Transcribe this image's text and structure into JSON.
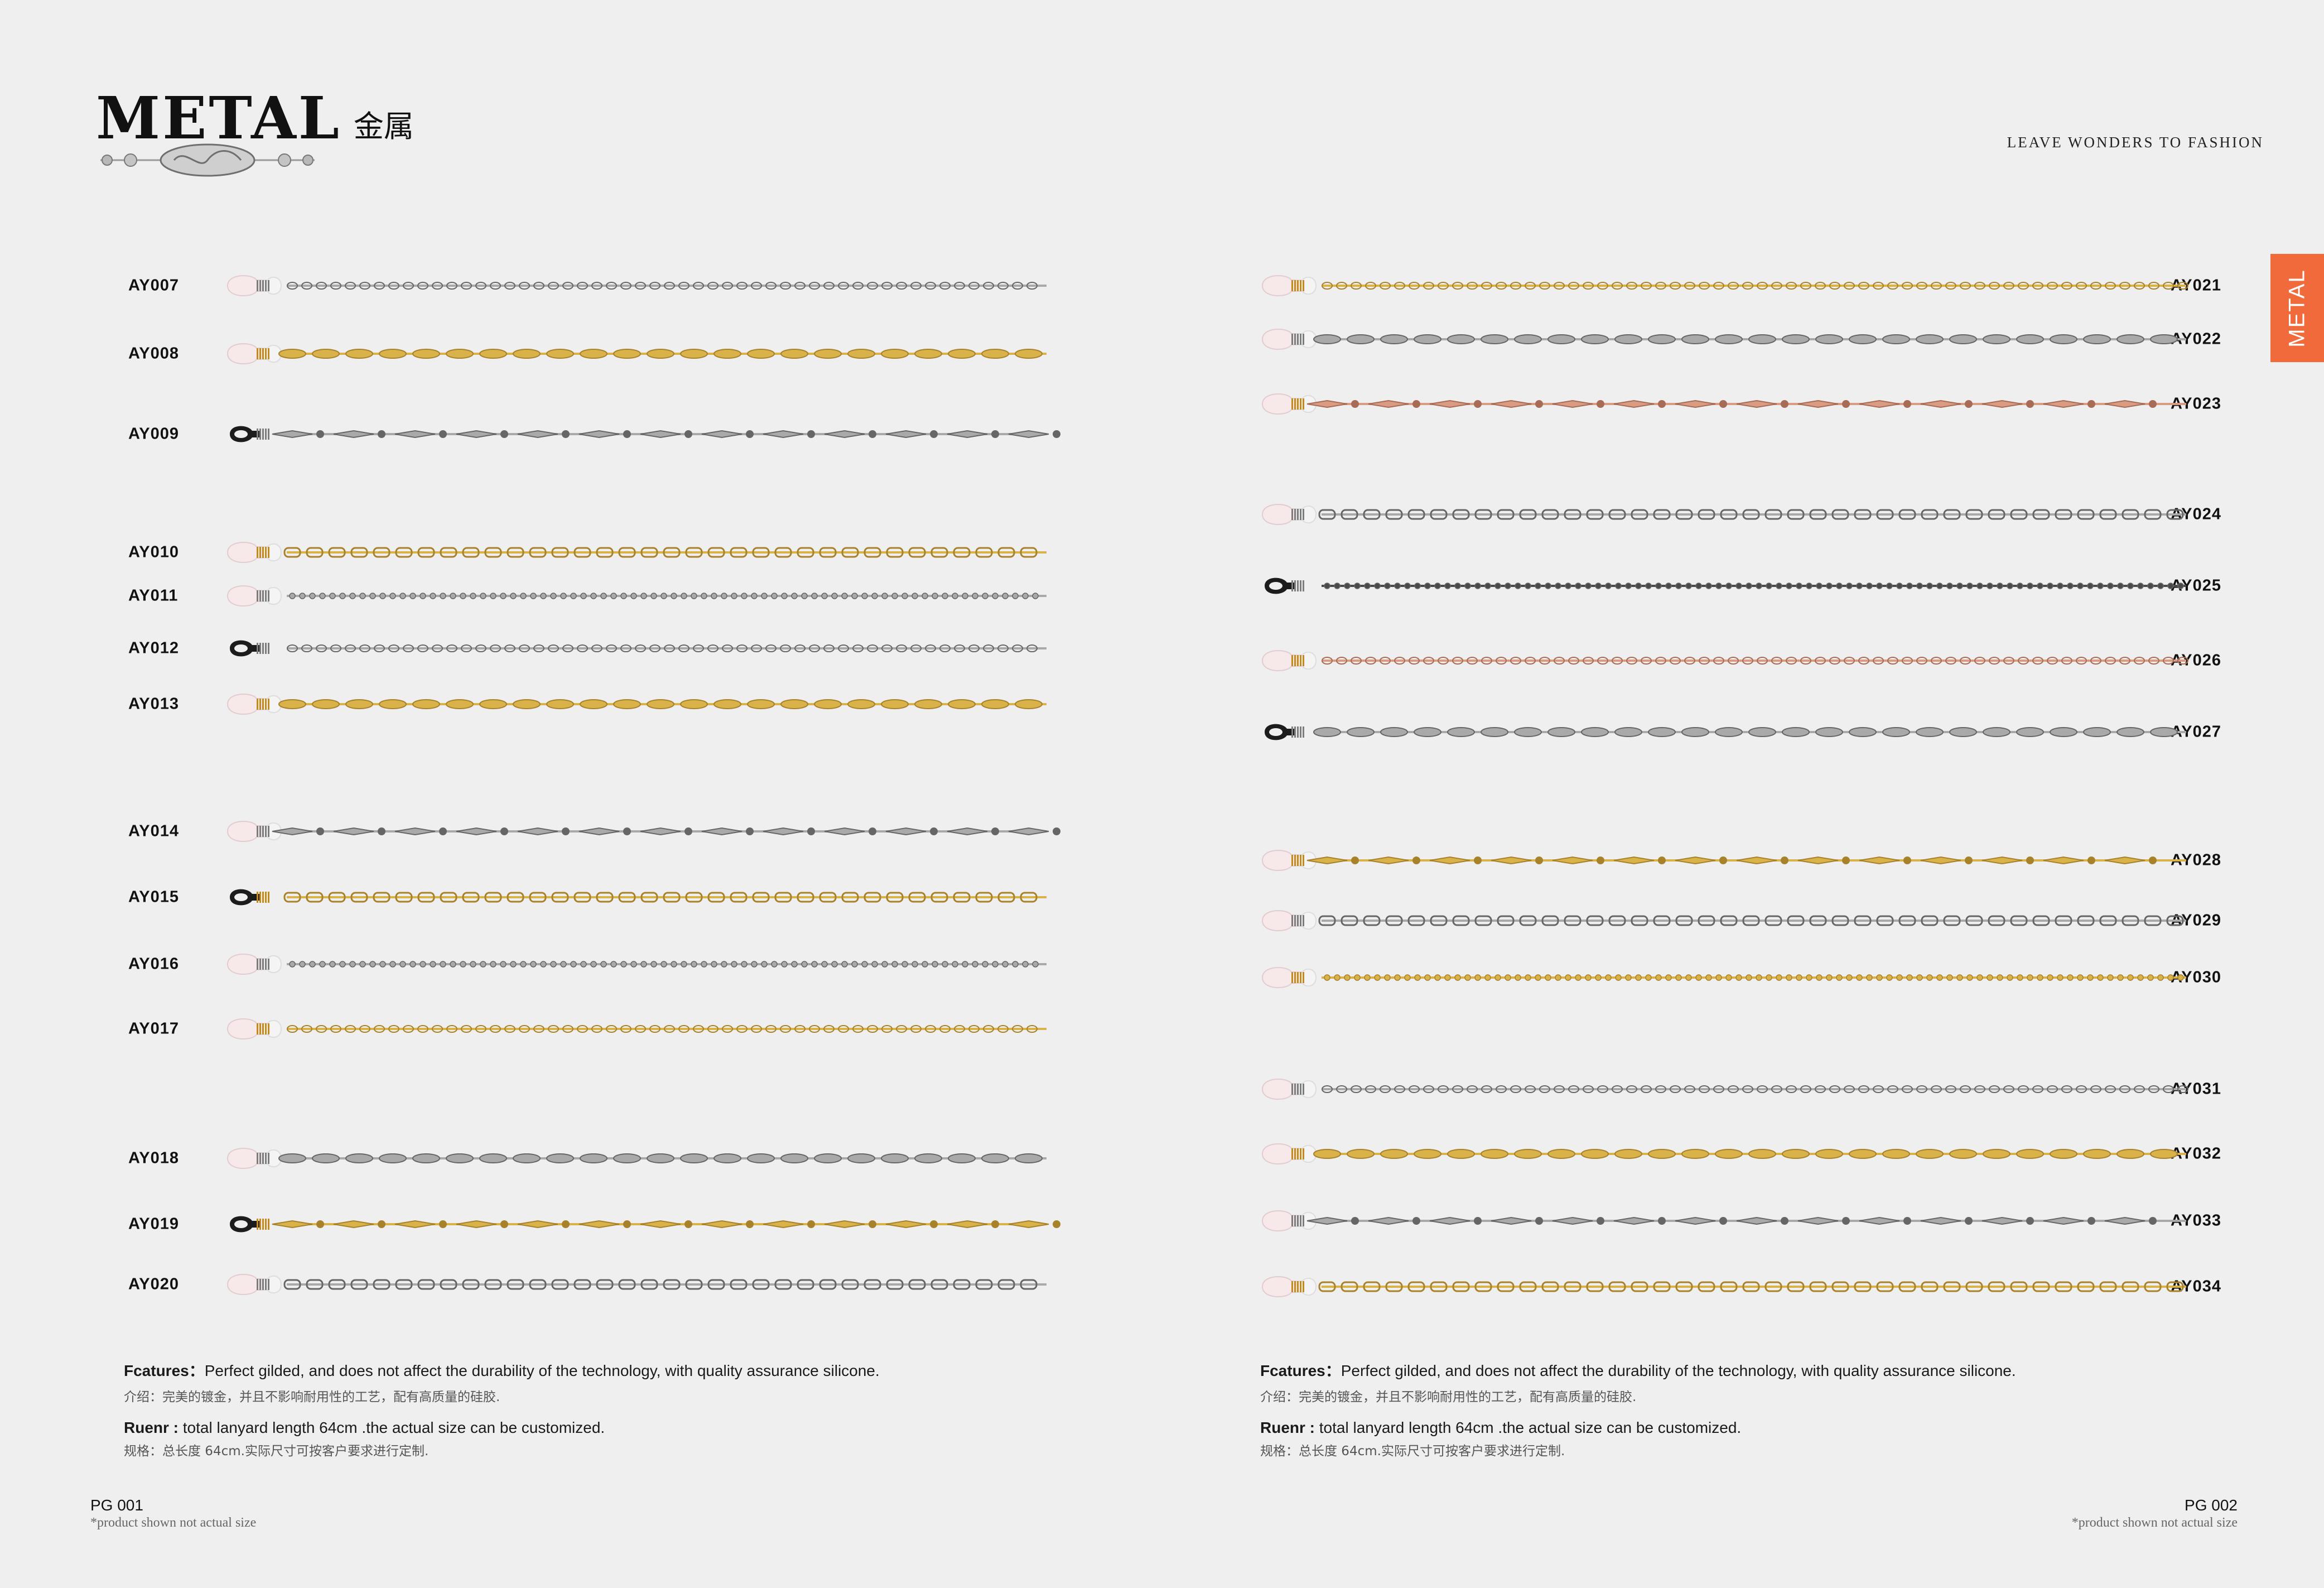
{
  "header": {
    "title_en": "METAL",
    "title_zh": "金属",
    "slogan": "LEAVE WONDERS TO FASHION",
    "side_tab": "METAL",
    "ornament_icon": "decorative-bead-ornament-icon"
  },
  "colors": {
    "background": "#efefef",
    "accent_tab": "#f06a3b",
    "gold": "#d9b24a",
    "silver": "#a9a9a9",
    "rose": "#d99c83",
    "gunmetal": "#4a4a4a"
  },
  "left_products": [
    {
      "code": "AY007",
      "tip": "clear",
      "cord": "silver"
    },
    {
      "code": "AY008",
      "tip": "clear",
      "cord": "gold"
    },
    {
      "code": "AY009",
      "tip": "black",
      "cord": "silver"
    },
    {
      "code": "AY010",
      "tip": "clear",
      "cord": "gold"
    },
    {
      "code": "AY011",
      "tip": "clear",
      "cord": "silver"
    },
    {
      "code": "AY012",
      "tip": "black",
      "cord": "silver"
    },
    {
      "code": "AY013",
      "tip": "clear",
      "cord": "gold"
    },
    {
      "code": "AY014",
      "tip": "clear",
      "cord": "silver"
    },
    {
      "code": "AY015",
      "tip": "black",
      "cord": "gold"
    },
    {
      "code": "AY016",
      "tip": "clear",
      "cord": "silver"
    },
    {
      "code": "AY017",
      "tip": "clear",
      "cord": "gold"
    },
    {
      "code": "AY018",
      "tip": "clear",
      "cord": "silver"
    },
    {
      "code": "AY019",
      "tip": "black",
      "cord": "gold"
    },
    {
      "code": "AY020",
      "tip": "clear",
      "cord": "silver"
    }
  ],
  "right_products": [
    {
      "code": "AY021",
      "tip": "clear",
      "cord": "gold"
    },
    {
      "code": "AY022",
      "tip": "clear",
      "cord": "silver"
    },
    {
      "code": "AY023",
      "tip": "clear",
      "cord": "rose"
    },
    {
      "code": "AY024",
      "tip": "clear",
      "cord": "silver"
    },
    {
      "code": "AY025",
      "tip": "black",
      "cord": "gunmetal"
    },
    {
      "code": "AY026",
      "tip": "clear",
      "cord": "rose"
    },
    {
      "code": "AY027",
      "tip": "black",
      "cord": "silver"
    },
    {
      "code": "AY028",
      "tip": "clear",
      "cord": "gold"
    },
    {
      "code": "AY029",
      "tip": "clear",
      "cord": "silver"
    },
    {
      "code": "AY030",
      "tip": "clear",
      "cord": "gold"
    },
    {
      "code": "AY031",
      "tip": "clear",
      "cord": "silver"
    },
    {
      "code": "AY032",
      "tip": "clear",
      "cord": "gold"
    },
    {
      "code": "AY033",
      "tip": "clear",
      "cord": "silver"
    },
    {
      "code": "AY034",
      "tip": "clear",
      "cord": "gold"
    }
  ],
  "features": {
    "features_label": "Fcatures",
    "features_sep": "：",
    "features_text": "Perfect gilded, and does not affect the durability of the technology, with quality assurance silicone.",
    "features_zh": "介绍：完美的镀金，并且不影响耐用性的工艺，配有高质量的硅胶.",
    "ruenr_label": "Ruenr :",
    "ruenr_text": " total lanyard length 64cm .the actual size can be customized.",
    "ruenr_zh": "规格：总长度 64cm.实际尺寸可按客户要求进行定制."
  },
  "footer": {
    "left_page": "PG 001",
    "right_page": "PG 002",
    "note": "*product shown not actual size"
  }
}
